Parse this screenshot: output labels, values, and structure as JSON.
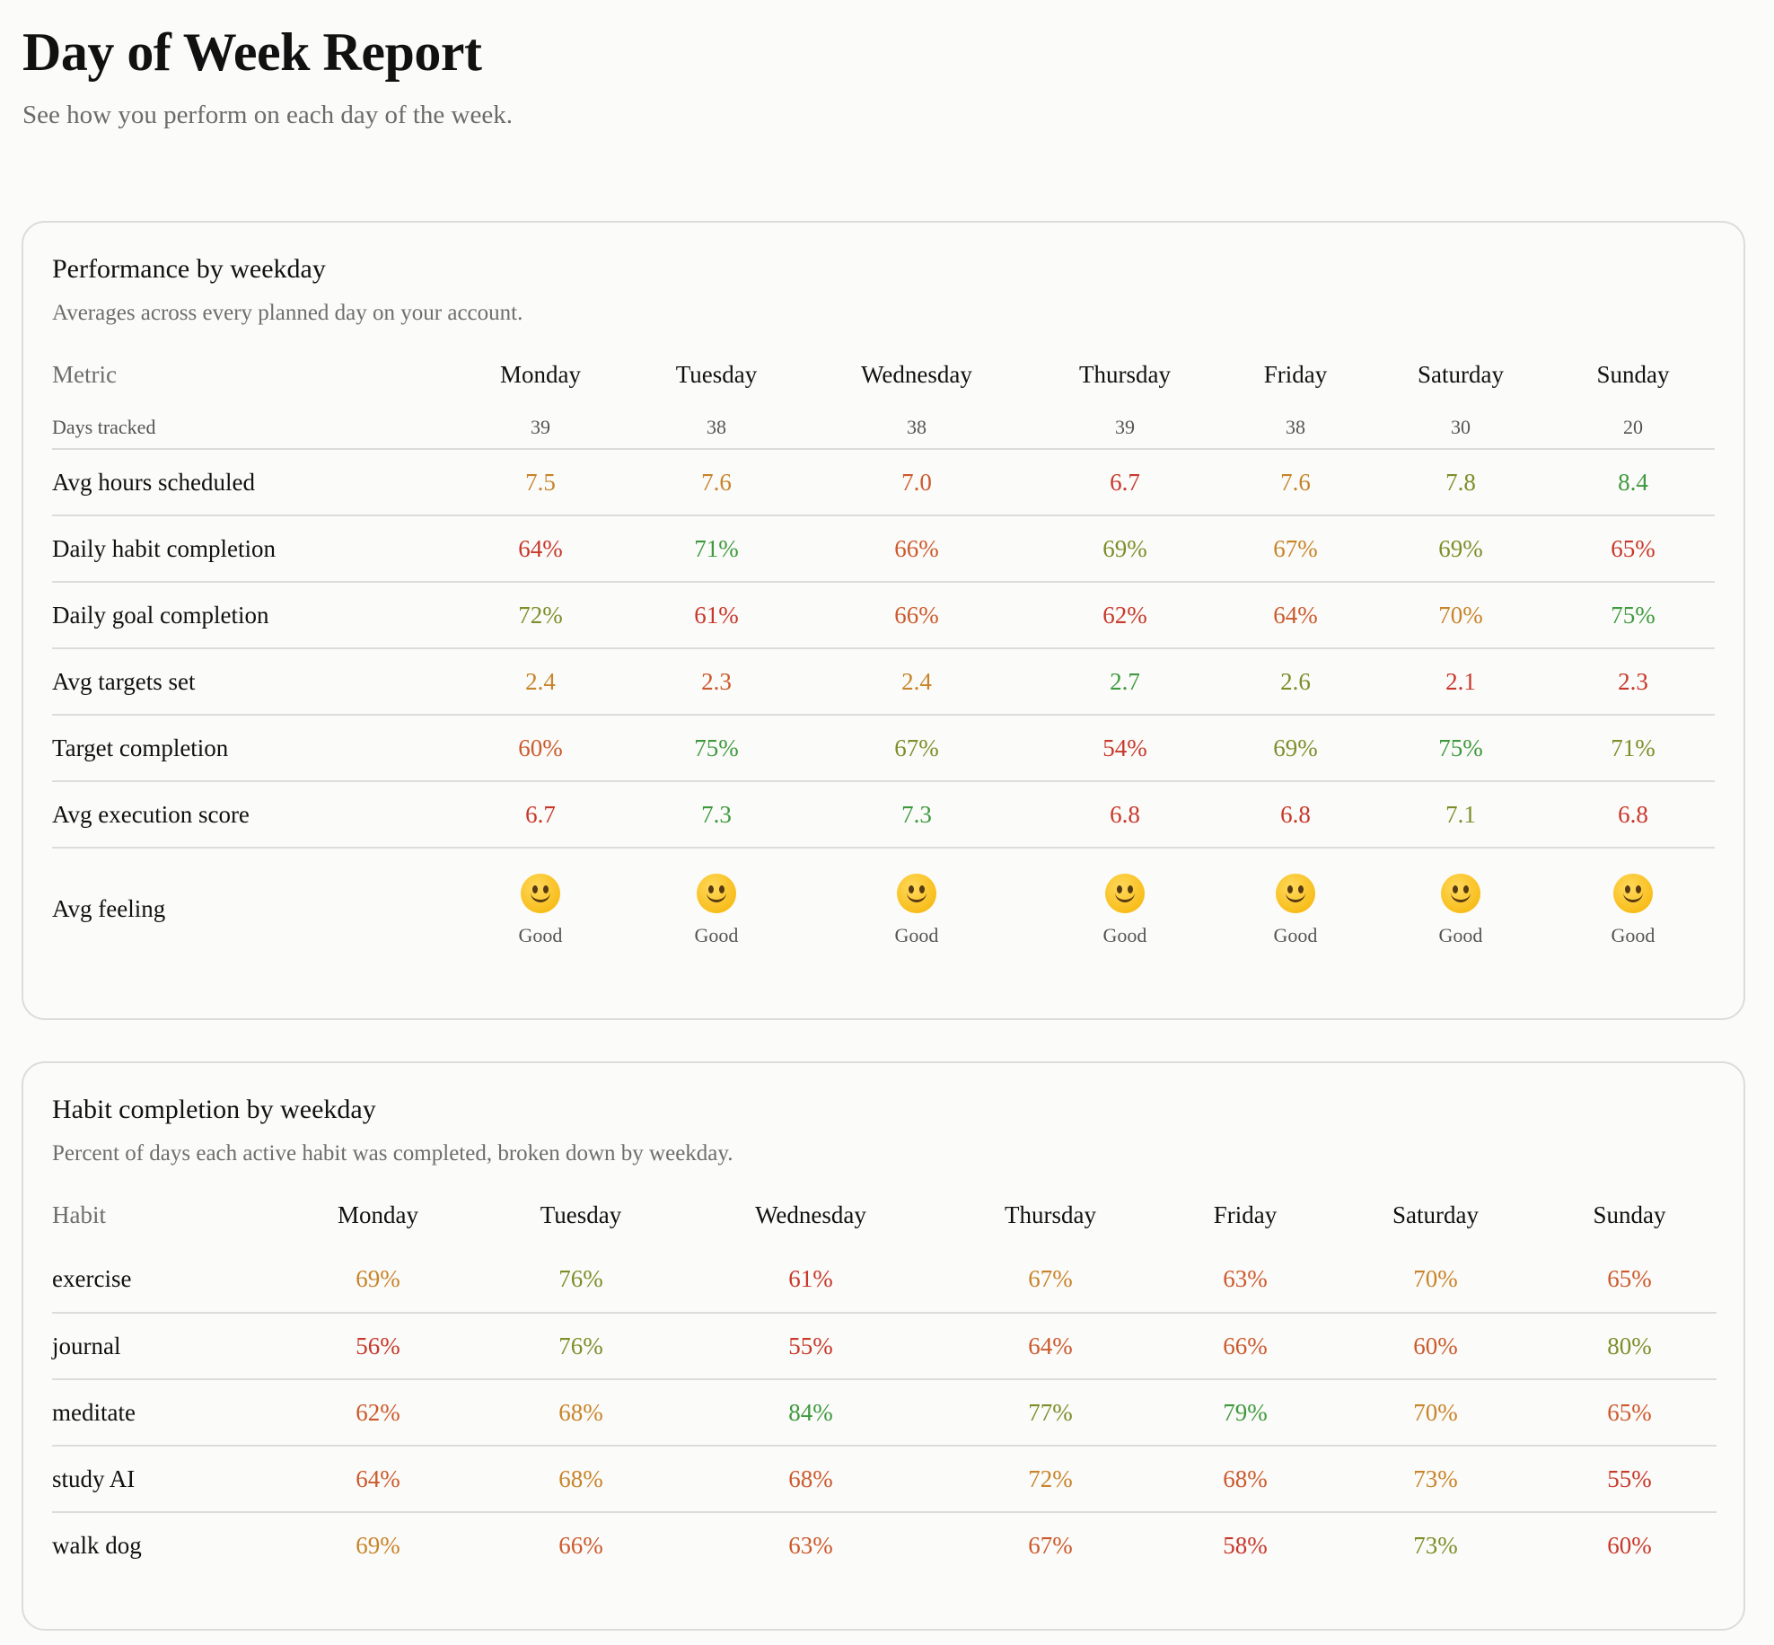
{
  "page": {
    "title": "Day of Week Report",
    "subtitle": "See how you perform on each day of the week."
  },
  "colors": {
    "red": "#c8382b",
    "orange_red": "#cc5a2d",
    "orange": "#c8842a",
    "olive": "#7c8f2a",
    "green": "#3f9a3e",
    "muted": "#6e6e6e",
    "border": "#dcdcdc"
  },
  "performance": {
    "title": "Performance by weekday",
    "description": "Averages across every planned day on your account.",
    "header_label": "Metric",
    "days": [
      "Monday",
      "Tuesday",
      "Wednesday",
      "Thursday",
      "Friday",
      "Saturday",
      "Sunday"
    ],
    "days_tracked": {
      "label": "Days tracked",
      "values": [
        "39",
        "38",
        "38",
        "39",
        "38",
        "30",
        "20"
      ]
    },
    "metrics": [
      {
        "label": "Avg hours scheduled",
        "values": [
          "7.5",
          "7.6",
          "7.0",
          "6.7",
          "7.6",
          "7.8",
          "8.4"
        ],
        "tones": [
          "orange",
          "orange",
          "orange_red",
          "red",
          "orange",
          "olive",
          "green"
        ]
      },
      {
        "label": "Daily habit completion",
        "values": [
          "64%",
          "71%",
          "66%",
          "69%",
          "67%",
          "69%",
          "65%"
        ],
        "tones": [
          "red",
          "green",
          "orange_red",
          "olive",
          "orange",
          "olive",
          "red"
        ]
      },
      {
        "label": "Daily goal completion",
        "values": [
          "72%",
          "61%",
          "66%",
          "62%",
          "64%",
          "70%",
          "75%"
        ],
        "tones": [
          "olive",
          "red",
          "orange_red",
          "red",
          "orange_red",
          "orange",
          "green"
        ]
      },
      {
        "label": "Avg targets set",
        "values": [
          "2.4",
          "2.3",
          "2.4",
          "2.7",
          "2.6",
          "2.1",
          "2.3"
        ],
        "tones": [
          "orange",
          "orange_red",
          "orange",
          "green",
          "olive",
          "red",
          "red"
        ]
      },
      {
        "label": "Target completion",
        "values": [
          "60%",
          "75%",
          "67%",
          "54%",
          "69%",
          "75%",
          "71%"
        ],
        "tones": [
          "orange_red",
          "green",
          "olive",
          "red",
          "olive",
          "green",
          "olive"
        ]
      },
      {
        "label": "Avg execution score",
        "values": [
          "6.7",
          "7.3",
          "7.3",
          "6.8",
          "6.8",
          "7.1",
          "6.8"
        ],
        "tones": [
          "red",
          "green",
          "green",
          "red",
          "red",
          "olive",
          "red"
        ]
      }
    ],
    "feeling": {
      "label": "Avg feeling",
      "icon": "slightly-smiling-face",
      "values": [
        "Good",
        "Good",
        "Good",
        "Good",
        "Good",
        "Good",
        "Good"
      ]
    }
  },
  "habits": {
    "title": "Habit completion by weekday",
    "description": "Percent of days each active habit was completed, broken down by weekday.",
    "header_label": "Habit",
    "days": [
      "Monday",
      "Tuesday",
      "Wednesday",
      "Thursday",
      "Friday",
      "Saturday",
      "Sunday"
    ],
    "rows": [
      {
        "label": "exercise",
        "values": [
          "69%",
          "76%",
          "61%",
          "67%",
          "63%",
          "70%",
          "65%"
        ],
        "tones": [
          "orange",
          "olive",
          "red",
          "orange",
          "orange_red",
          "orange",
          "orange_red"
        ]
      },
      {
        "label": "journal",
        "values": [
          "56%",
          "76%",
          "55%",
          "64%",
          "66%",
          "60%",
          "80%"
        ],
        "tones": [
          "red",
          "olive",
          "red",
          "orange_red",
          "orange_red",
          "orange_red",
          "olive"
        ]
      },
      {
        "label": "meditate",
        "values": [
          "62%",
          "68%",
          "84%",
          "77%",
          "79%",
          "70%",
          "65%"
        ],
        "tones": [
          "orange_red",
          "orange",
          "green",
          "olive",
          "green",
          "orange",
          "orange_red"
        ]
      },
      {
        "label": "study AI",
        "values": [
          "64%",
          "68%",
          "68%",
          "72%",
          "68%",
          "73%",
          "55%"
        ],
        "tones": [
          "orange_red",
          "orange",
          "orange_red",
          "orange",
          "orange_red",
          "orange",
          "red"
        ]
      },
      {
        "label": "walk dog",
        "values": [
          "69%",
          "66%",
          "63%",
          "67%",
          "58%",
          "73%",
          "60%"
        ],
        "tones": [
          "orange",
          "orange_red",
          "orange_red",
          "orange_red",
          "red",
          "olive",
          "red"
        ]
      }
    ]
  }
}
